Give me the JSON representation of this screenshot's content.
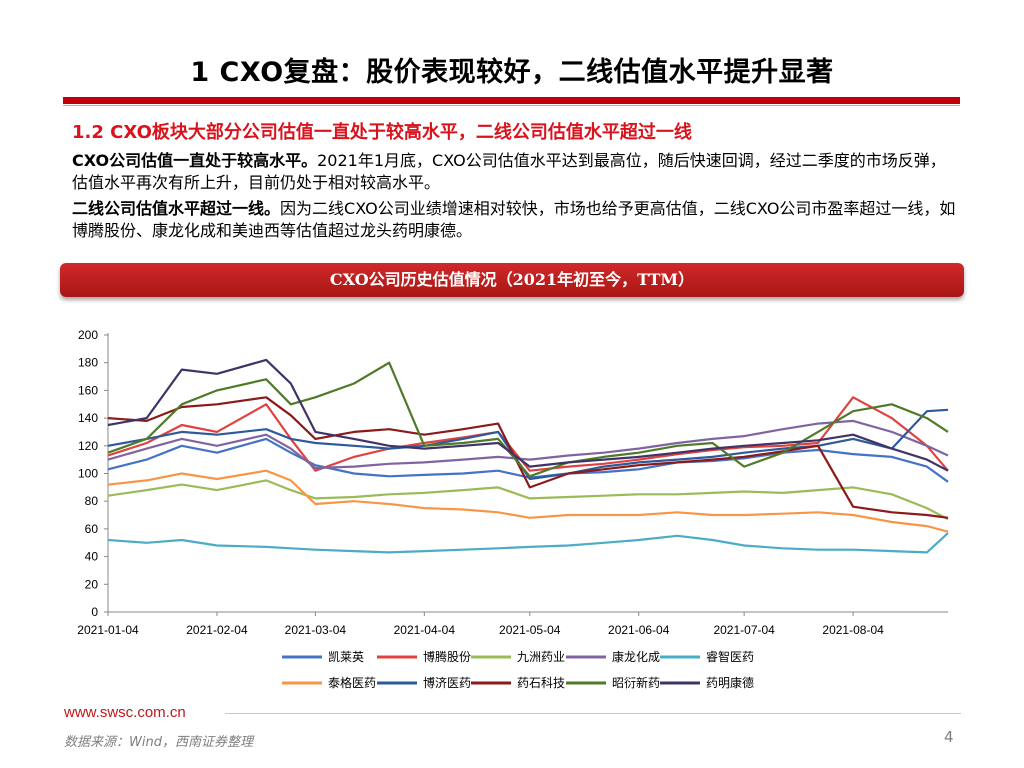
{
  "page": {
    "title": "1 CXO复盘：股价表现较好，二线估值水平提升显著",
    "subtitle": "1.2 CXO板块大部分公司估值一直处于较高水平，二线公司估值水平超过一线",
    "para1_bold": "CXO公司估值一直处于较高水平。",
    "para1_text": "2021年1月底，CXO公司估值水平达到最高位，随后快速回调，经过二季度的市场反弹，估值水平再次有所上升，目前仍处于相对较高水平。",
    "para2_bold": "二线公司估值水平超过一线。",
    "para2_text": "因为二线CXO公司业绩增速相对较快，市场也给予更高估值，二线CXO公司市盈率超过一线，如博腾股份、康龙化成和美迪西等估值超过龙头药明康德。",
    "banner": "CXO公司历史估值情况（2021年初至今，TTM）",
    "footer_url": "www.swsc.com.cn",
    "source": "数据来源：Wind，西南证券整理",
    "page_number": "4"
  },
  "chart_data": {
    "type": "line",
    "title": "CXO公司历史估值情况（2021年初至今，TTM）",
    "xlabel": "",
    "ylabel": "",
    "x_start": "2021-01-04",
    "x_end": "2021-08-31",
    "x_ticks": [
      "2021-01-04",
      "2021-02-04",
      "2021-03-04",
      "2021-04-04",
      "2021-05-04",
      "2021-06-04",
      "2021-07-04",
      "2021-08-04"
    ],
    "ylim": [
      0,
      200
    ],
    "y_ticks": [
      0,
      20,
      40,
      60,
      80,
      100,
      120,
      140,
      160,
      180,
      200
    ],
    "grid": false,
    "legend_position": "bottom",
    "series": [
      {
        "name": "凯莱英",
        "color": "#4472c4",
        "points": [
          [
            "2021-01-04",
            103
          ],
          [
            "2021-01-15",
            110
          ],
          [
            "2021-01-25",
            120
          ],
          [
            "2021-02-04",
            115
          ],
          [
            "2021-02-18",
            125
          ],
          [
            "2021-02-25",
            115
          ],
          [
            "2021-03-04",
            106
          ],
          [
            "2021-03-15",
            100
          ],
          [
            "2021-03-25",
            98
          ],
          [
            "2021-04-04",
            99
          ],
          [
            "2021-04-15",
            100
          ],
          [
            "2021-04-25",
            102
          ],
          [
            "2021-05-04",
            97
          ],
          [
            "2021-05-15",
            100
          ],
          [
            "2021-05-25",
            101
          ],
          [
            "2021-06-04",
            103
          ],
          [
            "2021-06-15",
            108
          ],
          [
            "2021-06-25",
            109
          ],
          [
            "2021-07-04",
            111
          ],
          [
            "2021-07-15",
            115
          ],
          [
            "2021-07-25",
            117
          ],
          [
            "2021-08-04",
            114
          ],
          [
            "2021-08-15",
            112
          ],
          [
            "2021-08-25",
            105
          ],
          [
            "2021-08-31",
            94
          ]
        ]
      },
      {
        "name": "博腾股份",
        "color": "#e0423f",
        "points": [
          [
            "2021-01-04",
            113
          ],
          [
            "2021-01-15",
            122
          ],
          [
            "2021-01-25",
            135
          ],
          [
            "2021-02-04",
            130
          ],
          [
            "2021-02-18",
            150
          ],
          [
            "2021-02-25",
            125
          ],
          [
            "2021-03-04",
            102
          ],
          [
            "2021-03-15",
            112
          ],
          [
            "2021-03-25",
            118
          ],
          [
            "2021-04-04",
            122
          ],
          [
            "2021-04-15",
            126
          ],
          [
            "2021-04-25",
            130
          ],
          [
            "2021-05-04",
            102
          ],
          [
            "2021-05-15",
            105
          ],
          [
            "2021-05-25",
            107
          ],
          [
            "2021-06-04",
            110
          ],
          [
            "2021-06-15",
            114
          ],
          [
            "2021-06-25",
            117
          ],
          [
            "2021-07-04",
            119
          ],
          [
            "2021-07-15",
            120
          ],
          [
            "2021-07-25",
            122
          ],
          [
            "2021-08-04",
            155
          ],
          [
            "2021-08-15",
            140
          ],
          [
            "2021-08-25",
            120
          ],
          [
            "2021-08-31",
            102
          ]
        ]
      },
      {
        "name": "九洲药业",
        "color": "#9bbb59",
        "points": [
          [
            "2021-01-04",
            84
          ],
          [
            "2021-01-15",
            88
          ],
          [
            "2021-01-25",
            92
          ],
          [
            "2021-02-04",
            88
          ],
          [
            "2021-02-18",
            95
          ],
          [
            "2021-02-25",
            88
          ],
          [
            "2021-03-04",
            82
          ],
          [
            "2021-03-15",
            83
          ],
          [
            "2021-03-25",
            85
          ],
          [
            "2021-04-04",
            86
          ],
          [
            "2021-04-15",
            88
          ],
          [
            "2021-04-25",
            90
          ],
          [
            "2021-05-04",
            82
          ],
          [
            "2021-05-15",
            83
          ],
          [
            "2021-05-25",
            84
          ],
          [
            "2021-06-04",
            85
          ],
          [
            "2021-06-15",
            85
          ],
          [
            "2021-06-25",
            86
          ],
          [
            "2021-07-04",
            87
          ],
          [
            "2021-07-15",
            86
          ],
          [
            "2021-07-25",
            88
          ],
          [
            "2021-08-04",
            90
          ],
          [
            "2021-08-15",
            85
          ],
          [
            "2021-08-25",
            75
          ],
          [
            "2021-08-31",
            67
          ]
        ]
      },
      {
        "name": "康龙化成",
        "color": "#8064a2",
        "points": [
          [
            "2021-01-04",
            110
          ],
          [
            "2021-01-15",
            118
          ],
          [
            "2021-01-25",
            125
          ],
          [
            "2021-02-04",
            120
          ],
          [
            "2021-02-18",
            128
          ],
          [
            "2021-02-25",
            118
          ],
          [
            "2021-03-04",
            104
          ],
          [
            "2021-03-15",
            105
          ],
          [
            "2021-03-25",
            107
          ],
          [
            "2021-04-04",
            108
          ],
          [
            "2021-04-15",
            110
          ],
          [
            "2021-04-25",
            112
          ],
          [
            "2021-05-04",
            110
          ],
          [
            "2021-05-15",
            113
          ],
          [
            "2021-05-25",
            115
          ],
          [
            "2021-06-04",
            118
          ],
          [
            "2021-06-15",
            122
          ],
          [
            "2021-06-25",
            125
          ],
          [
            "2021-07-04",
            127
          ],
          [
            "2021-07-15",
            132
          ],
          [
            "2021-07-25",
            136
          ],
          [
            "2021-08-04",
            138
          ],
          [
            "2021-08-15",
            130
          ],
          [
            "2021-08-25",
            120
          ],
          [
            "2021-08-31",
            113
          ]
        ]
      },
      {
        "name": "睿智医药",
        "color": "#4bacc6",
        "points": [
          [
            "2021-01-04",
            52
          ],
          [
            "2021-01-15",
            50
          ],
          [
            "2021-01-25",
            52
          ],
          [
            "2021-02-04",
            48
          ],
          [
            "2021-02-18",
            47
          ],
          [
            "2021-02-25",
            46
          ],
          [
            "2021-03-04",
            45
          ],
          [
            "2021-03-15",
            44
          ],
          [
            "2021-03-25",
            43
          ],
          [
            "2021-04-04",
            44
          ],
          [
            "2021-04-15",
            45
          ],
          [
            "2021-04-25",
            46
          ],
          [
            "2021-05-04",
            47
          ],
          [
            "2021-05-15",
            48
          ],
          [
            "2021-05-25",
            50
          ],
          [
            "2021-06-04",
            52
          ],
          [
            "2021-06-15",
            55
          ],
          [
            "2021-06-25",
            52
          ],
          [
            "2021-07-04",
            48
          ],
          [
            "2021-07-15",
            46
          ],
          [
            "2021-07-25",
            45
          ],
          [
            "2021-08-04",
            45
          ],
          [
            "2021-08-15",
            44
          ],
          [
            "2021-08-25",
            43
          ],
          [
            "2021-08-31",
            57
          ]
        ]
      },
      {
        "name": "泰格医药",
        "color": "#f79646",
        "points": [
          [
            "2021-01-04",
            92
          ],
          [
            "2021-01-15",
            95
          ],
          [
            "2021-01-25",
            100
          ],
          [
            "2021-02-04",
            96
          ],
          [
            "2021-02-18",
            102
          ],
          [
            "2021-02-25",
            95
          ],
          [
            "2021-03-04",
            78
          ],
          [
            "2021-03-15",
            80
          ],
          [
            "2021-03-25",
            78
          ],
          [
            "2021-04-04",
            75
          ],
          [
            "2021-04-15",
            74
          ],
          [
            "2021-04-25",
            72
          ],
          [
            "2021-05-04",
            68
          ],
          [
            "2021-05-15",
            70
          ],
          [
            "2021-05-25",
            70
          ],
          [
            "2021-06-04",
            70
          ],
          [
            "2021-06-15",
            72
          ],
          [
            "2021-06-25",
            70
          ],
          [
            "2021-07-04",
            70
          ],
          [
            "2021-07-15",
            71
          ],
          [
            "2021-07-25",
            72
          ],
          [
            "2021-08-04",
            70
          ],
          [
            "2021-08-15",
            65
          ],
          [
            "2021-08-25",
            62
          ],
          [
            "2021-08-31",
            58
          ]
        ]
      },
      {
        "name": "博济医药",
        "color": "#2e5a9c",
        "points": [
          [
            "2021-01-04",
            120
          ],
          [
            "2021-01-15",
            125
          ],
          [
            "2021-01-25",
            130
          ],
          [
            "2021-02-04",
            128
          ],
          [
            "2021-02-18",
            132
          ],
          [
            "2021-02-25",
            125
          ],
          [
            "2021-03-04",
            122
          ],
          [
            "2021-03-15",
            120
          ],
          [
            "2021-03-25",
            118
          ],
          [
            "2021-04-04",
            120
          ],
          [
            "2021-04-15",
            125
          ],
          [
            "2021-04-25",
            130
          ],
          [
            "2021-05-04",
            96
          ],
          [
            "2021-05-15",
            100
          ],
          [
            "2021-05-25",
            105
          ],
          [
            "2021-06-04",
            108
          ],
          [
            "2021-06-15",
            110
          ],
          [
            "2021-06-25",
            112
          ],
          [
            "2021-07-04",
            115
          ],
          [
            "2021-07-15",
            118
          ],
          [
            "2021-07-25",
            120
          ],
          [
            "2021-08-04",
            125
          ],
          [
            "2021-08-15",
            118
          ],
          [
            "2021-08-25",
            145
          ],
          [
            "2021-08-31",
            146
          ]
        ]
      },
      {
        "name": "药石科技",
        "color": "#8b1a1a",
        "points": [
          [
            "2021-01-04",
            140
          ],
          [
            "2021-01-15",
            138
          ],
          [
            "2021-01-25",
            148
          ],
          [
            "2021-02-04",
            150
          ],
          [
            "2021-02-18",
            155
          ],
          [
            "2021-02-25",
            142
          ],
          [
            "2021-03-04",
            125
          ],
          [
            "2021-03-15",
            130
          ],
          [
            "2021-03-25",
            132
          ],
          [
            "2021-04-04",
            128
          ],
          [
            "2021-04-15",
            132
          ],
          [
            "2021-04-25",
            136
          ],
          [
            "2021-05-04",
            90
          ],
          [
            "2021-05-15",
            100
          ],
          [
            "2021-05-25",
            103
          ],
          [
            "2021-06-04",
            106
          ],
          [
            "2021-06-15",
            108
          ],
          [
            "2021-06-25",
            110
          ],
          [
            "2021-07-04",
            112
          ],
          [
            "2021-07-15",
            116
          ],
          [
            "2021-07-25",
            120
          ],
          [
            "2021-08-04",
            76
          ],
          [
            "2021-08-15",
            72
          ],
          [
            "2021-08-25",
            70
          ],
          [
            "2021-08-31",
            68
          ]
        ]
      },
      {
        "name": "昭衍新药",
        "color": "#4f7a28",
        "points": [
          [
            "2021-01-04",
            115
          ],
          [
            "2021-01-15",
            125
          ],
          [
            "2021-01-25",
            150
          ],
          [
            "2021-02-04",
            160
          ],
          [
            "2021-02-18",
            168
          ],
          [
            "2021-02-25",
            150
          ],
          [
            "2021-03-04",
            155
          ],
          [
            "2021-03-15",
            165
          ],
          [
            "2021-03-25",
            180
          ],
          [
            "2021-04-04",
            120
          ],
          [
            "2021-04-15",
            122
          ],
          [
            "2021-04-25",
            125
          ],
          [
            "2021-05-04",
            98
          ],
          [
            "2021-05-15",
            108
          ],
          [
            "2021-05-25",
            112
          ],
          [
            "2021-06-04",
            115
          ],
          [
            "2021-06-15",
            120
          ],
          [
            "2021-06-25",
            122
          ],
          [
            "2021-07-04",
            105
          ],
          [
            "2021-07-15",
            115
          ],
          [
            "2021-07-25",
            130
          ],
          [
            "2021-08-04",
            145
          ],
          [
            "2021-08-15",
            150
          ],
          [
            "2021-08-25",
            140
          ],
          [
            "2021-08-31",
            130
          ]
        ]
      },
      {
        "name": "药明康德",
        "color": "#403368",
        "points": [
          [
            "2021-01-04",
            135
          ],
          [
            "2021-01-15",
            140
          ],
          [
            "2021-01-25",
            175
          ],
          [
            "2021-02-04",
            172
          ],
          [
            "2021-02-18",
            182
          ],
          [
            "2021-02-25",
            165
          ],
          [
            "2021-03-04",
            130
          ],
          [
            "2021-03-15",
            125
          ],
          [
            "2021-03-25",
            120
          ],
          [
            "2021-04-04",
            118
          ],
          [
            "2021-04-15",
            120
          ],
          [
            "2021-04-25",
            122
          ],
          [
            "2021-05-04",
            105
          ],
          [
            "2021-05-15",
            108
          ],
          [
            "2021-05-25",
            110
          ],
          [
            "2021-06-04",
            112
          ],
          [
            "2021-06-15",
            115
          ],
          [
            "2021-06-25",
            118
          ],
          [
            "2021-07-04",
            120
          ],
          [
            "2021-07-15",
            122
          ],
          [
            "2021-07-25",
            124
          ],
          [
            "2021-08-04",
            128
          ],
          [
            "2021-08-15",
            118
          ],
          [
            "2021-08-25",
            110
          ],
          [
            "2021-08-31",
            102
          ]
        ]
      }
    ]
  }
}
